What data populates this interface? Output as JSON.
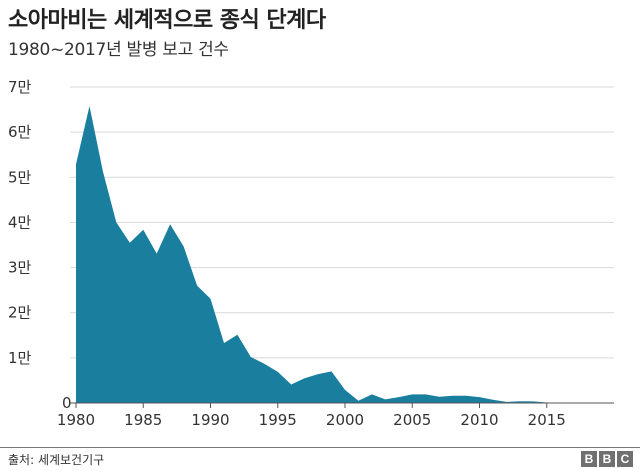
{
  "header": {
    "title": "소아마비는 세계적으로 종식 단계다",
    "subtitle": "1980~2017년 발병 보고 건수"
  },
  "footer": {
    "source": "출처: 세계보건기구",
    "logo_letters": [
      "B",
      "B",
      "C"
    ]
  },
  "colors": {
    "area": "#1a7f9e",
    "grid": "#d9d9d9",
    "axis": "#555555",
    "logo": "#707070"
  },
  "chart_data": {
    "type": "area",
    "title": "소아마비는 세계적으로 종식 단계다",
    "subtitle": "1980~2017년 발병 보고 건수",
    "xlabel": "",
    "ylabel": "",
    "x": [
      1980,
      1981,
      1982,
      1983,
      1984,
      1985,
      1986,
      1987,
      1988,
      1989,
      1990,
      1991,
      1992,
      1993,
      1994,
      1995,
      1996,
      1997,
      1998,
      1999,
      2000,
      2001,
      2002,
      2003,
      2004,
      2005,
      2006,
      2007,
      2008,
      2009,
      2010,
      2011,
      2012,
      2013,
      2014,
      2015,
      2016,
      2017
    ],
    "series": [
      {
        "name": "발병 보고 건수",
        "values": [
          52900,
          65800,
          51300,
          40000,
          35500,
          38400,
          33100,
          39600,
          34700,
          26000,
          23100,
          13300,
          15100,
          10200,
          8700,
          6900,
          4100,
          5500,
          6400,
          7000,
          2900,
          500,
          1900,
          800,
          1300,
          1900,
          1900,
          1400,
          1600,
          1600,
          1300,
          700,
          250,
          400,
          350,
          100,
          40,
          20
        ]
      }
    ],
    "ylim": [
      0,
      70000
    ],
    "xlim": [
      1980,
      2020
    ],
    "y_ticks": [
      {
        "value": 0,
        "label": "0"
      },
      {
        "value": 10000,
        "label": "1만"
      },
      {
        "value": 20000,
        "label": "2만"
      },
      {
        "value": 30000,
        "label": "3만"
      },
      {
        "value": 40000,
        "label": "4만"
      },
      {
        "value": 50000,
        "label": "5만"
      },
      {
        "value": 60000,
        "label": "6만"
      },
      {
        "value": 70000,
        "label": "7만"
      }
    ],
    "x_ticks": [
      {
        "value": 1980,
        "label": "1980"
      },
      {
        "value": 1985,
        "label": "1985"
      },
      {
        "value": 1990,
        "label": "1990"
      },
      {
        "value": 1995,
        "label": "1995"
      },
      {
        "value": 2000,
        "label": "2000"
      },
      {
        "value": 2005,
        "label": "2005"
      },
      {
        "value": 2010,
        "label": "2010"
      },
      {
        "value": 2015,
        "label": "2015"
      }
    ],
    "grid": true,
    "legend": "none"
  }
}
